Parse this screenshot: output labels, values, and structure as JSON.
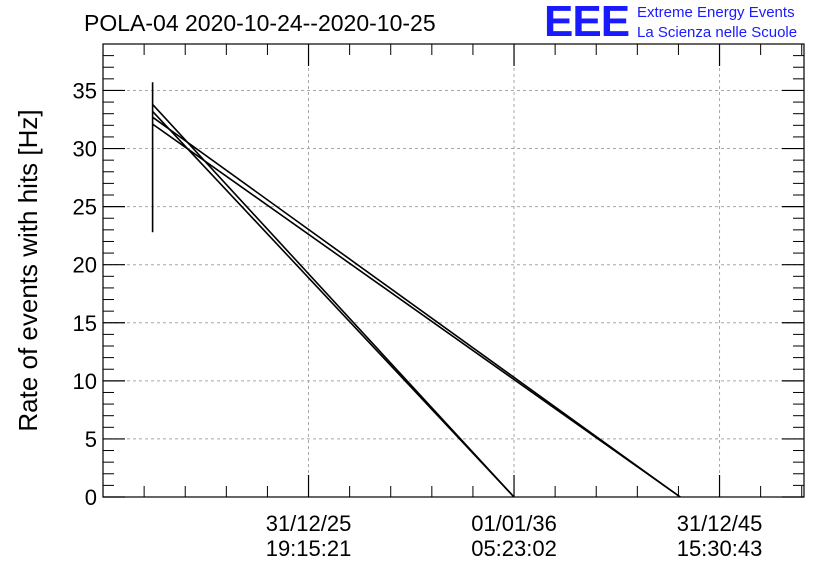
{
  "chart_data": {
    "type": "line",
    "title": "POLA-04 2020-10-24--2020-10-25",
    "xlabel": "",
    "ylabel": "Rate of events with hits [Hz]",
    "ylim": [
      0,
      39
    ],
    "yticks": [
      0,
      5,
      10,
      15,
      20,
      25,
      30,
      35
    ],
    "xlim": [
      "2015-12-31 22:00",
      "2050-02-10 00:00"
    ],
    "xticks": [
      {
        "date": "31/12/25",
        "time": "19:15:21",
        "at": "2025-12-31 19:15:21"
      },
      {
        "date": "01/01/36",
        "time": "05:23:02",
        "at": "2036-01-01 05:23:02"
      },
      {
        "date": "31/12/45",
        "time": "15:30:43",
        "at": "2045-12-31 15:30:43"
      }
    ],
    "grid": true,
    "series": [
      {
        "points": [
          [
            "2018-06-01",
            22.8
          ],
          [
            "2018-06-01",
            35.7
          ]
        ]
      },
      {
        "points": [
          [
            "2018-06-01",
            33.8
          ],
          [
            "2036-01-01",
            0
          ]
        ]
      },
      {
        "points": [
          [
            "2018-06-01",
            33.2
          ],
          [
            "2036-01-01",
            0
          ]
        ]
      },
      {
        "points": [
          [
            "2018-06-01",
            32.7
          ],
          [
            "2044-02-01",
            0
          ]
        ]
      },
      {
        "points": [
          [
            "2018-06-01",
            32.1
          ],
          [
            "2044-02-01",
            0
          ]
        ]
      }
    ]
  },
  "logo": {
    "letters": "EEE",
    "line1": "Extreme Energy Events",
    "line2": "La Scienza nelle Scuole"
  }
}
